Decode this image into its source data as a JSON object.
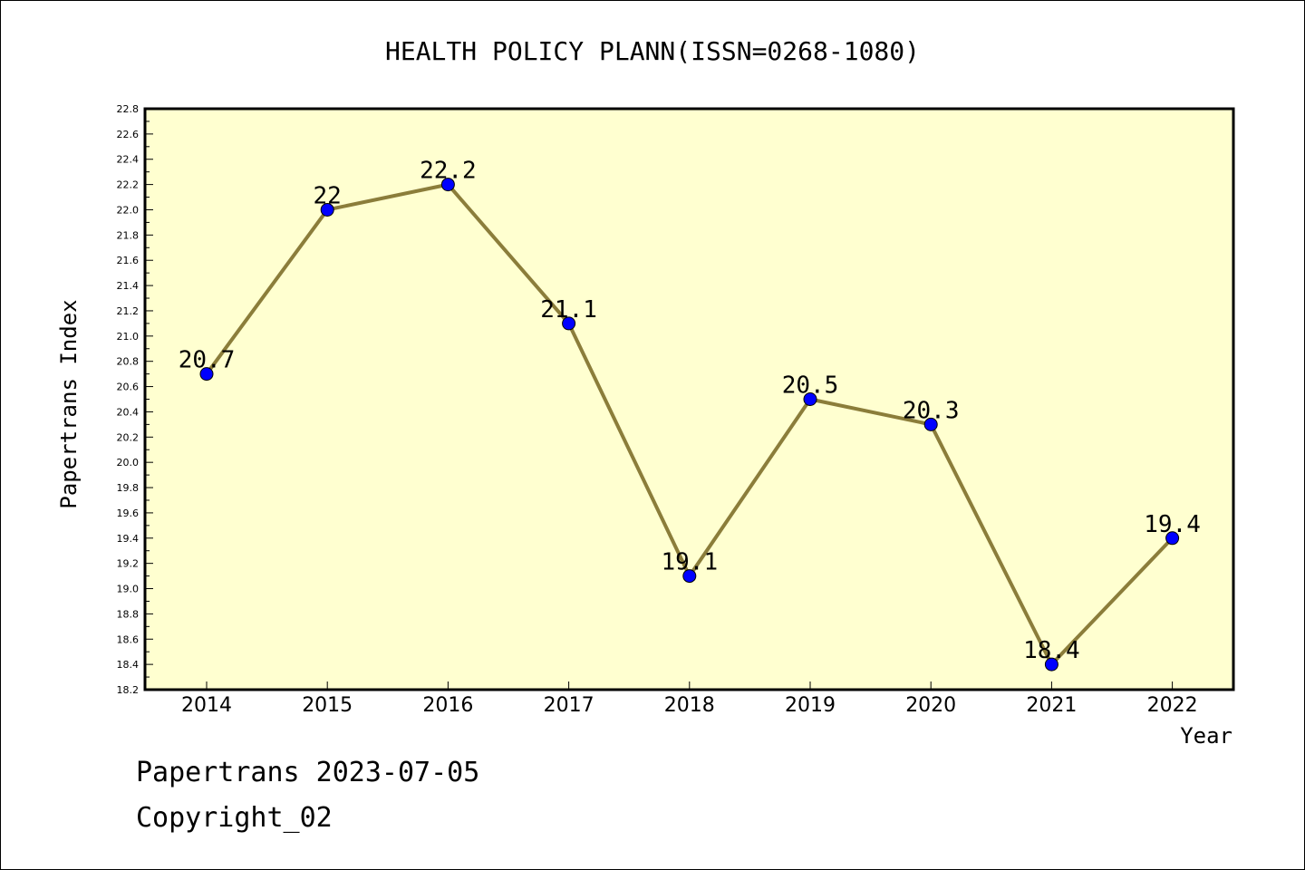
{
  "chart_data": {
    "type": "line",
    "title": "HEALTH POLICY PLANN(ISSN=0268-1080)",
    "xlabel": "Year",
    "ylabel": "Papertrans Index",
    "categories": [
      "2014",
      "2015",
      "2016",
      "2017",
      "2018",
      "2019",
      "2020",
      "2021",
      "2022"
    ],
    "values": [
      20.7,
      22.0,
      22.2,
      21.1,
      19.1,
      20.5,
      20.3,
      18.4,
      19.4
    ],
    "data_labels": [
      "20.7",
      "22",
      "22.2",
      "21.1",
      "19.1",
      "20.5",
      "20.3",
      "18.4",
      "19.4"
    ],
    "ylim": [
      18.2,
      22.8
    ],
    "yticks": [
      "18.2",
      "18.4",
      "18.6",
      "18.8",
      "19.0",
      "19.2",
      "19.4",
      "19.6",
      "19.8",
      "20.0",
      "20.2",
      "20.4",
      "20.6",
      "20.8",
      "21.0",
      "21.2",
      "21.4",
      "21.6",
      "21.8",
      "22.0",
      "22.2",
      "22.4",
      "22.6",
      "22.8"
    ],
    "grid": false,
    "colors": {
      "plot_background": "#ffffd0",
      "line": "#8b7d3a",
      "marker": "#0000ff"
    }
  },
  "footer": {
    "line1": "Papertrans 2023-07-05",
    "line2": "Copyright_02"
  }
}
